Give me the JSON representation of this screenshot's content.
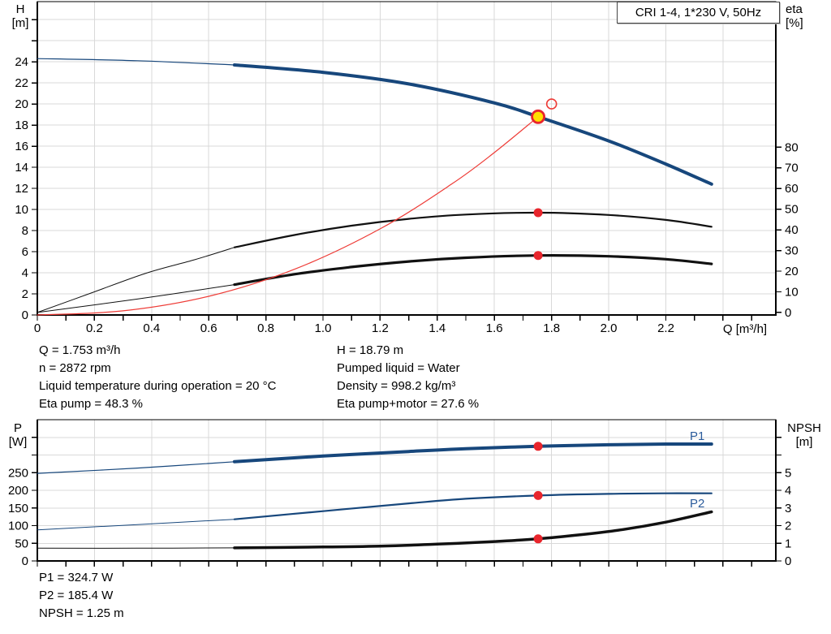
{
  "header": {
    "title": "CRI 1-4, 1*230 V, 50Hz"
  },
  "duty_text": {
    "left": [
      "Q = 1.753 m³/h",
      "n = 2872 rpm",
      "Liquid temperature during operation = 20 °C",
      "Eta pump = 48.3 %"
    ],
    "right": [
      "H = 18.79 m",
      "Pumped liquid = Water",
      "Density = 998.2 kg/m³",
      "Eta pump+motor = 27.6 %"
    ]
  },
  "result_text": [
    "P1 = 324.7 W",
    "P2 = 185.4 W",
    "NPSH = 1.25 m"
  ],
  "axis_captions": {
    "h": [
      "H",
      "[m]"
    ],
    "eta": [
      "eta",
      "[%]"
    ],
    "q": "Q [m³/h]",
    "p": [
      "P",
      "[W]"
    ],
    "npsh": [
      "NPSH",
      "[m]"
    ]
  },
  "colors": {
    "curve_blue": "#17477c",
    "label_blue": "#2a5b9b",
    "black": "#111111",
    "red": "#e8252c",
    "curve_red": "#ee3b36",
    "yellow": "#ffe000",
    "grid": "#d9d9d9",
    "axis": "#000000"
  },
  "chart_data": [
    {
      "type": "line",
      "title": "CRI 1-4, 1*230 V, 50Hz",
      "x_axis": {
        "label": "Q [m³/h]",
        "min": 0,
        "max": 2.585,
        "labeled_tick_step": 0.2,
        "labeled_tick_max": 2.2,
        "minor_tick_step": 0.1,
        "minor_tick_max": 2.5,
        "grid_step": 0.2
      },
      "y_left": {
        "label": "H [m]",
        "min": 0,
        "max": 29.7,
        "tick_step": 2,
        "tick_max": 28,
        "label_max": 24,
        "grid": true
      },
      "y_right": {
        "label": "eta [%]",
        "min": -1.2,
        "max": 150.4,
        "tick_step": 10,
        "tick_max": 80,
        "label_max": 80,
        "grid": false
      },
      "series": [
        {
          "name": "head-curve-thin",
          "axis": "left",
          "color_key": "curve_blue",
          "width": 1.2,
          "points": [
            [
              0,
              24.3
            ],
            [
              0.35,
              24.1
            ],
            [
              0.69,
              23.7
            ]
          ]
        },
        {
          "name": "head-curve",
          "axis": "left",
          "color_key": "curve_blue",
          "width": 4,
          "points": [
            [
              0.69,
              23.7
            ],
            [
              1.0,
              23.0
            ],
            [
              1.3,
              21.9
            ],
            [
              1.6,
              20.1
            ],
            [
              1.753,
              18.79
            ],
            [
              2.0,
              16.5
            ],
            [
              2.2,
              14.3
            ],
            [
              2.36,
              12.4
            ]
          ]
        },
        {
          "name": "eta-pump-curve-thin",
          "axis": "right",
          "color_key": "black",
          "width": 1,
          "points": [
            [
              0,
              0
            ],
            [
              0.18,
              9
            ],
            [
              0.38,
              19
            ],
            [
              0.55,
              25.5
            ],
            [
              0.69,
              31.5
            ]
          ]
        },
        {
          "name": "eta-pump-curve",
          "axis": "right",
          "color_key": "black",
          "width": 2.2,
          "points": [
            [
              0.69,
              31.5
            ],
            [
              0.9,
              37.5
            ],
            [
              1.1,
              42
            ],
            [
              1.3,
              45.3
            ],
            [
              1.5,
              47.4
            ],
            [
              1.753,
              48.3
            ],
            [
              2.0,
              47.2
            ],
            [
              2.2,
              44.8
            ],
            [
              2.36,
              41.5
            ]
          ]
        },
        {
          "name": "eta-pump-motor-curve-thin",
          "axis": "right",
          "color_key": "black",
          "width": 1,
          "points": [
            [
              0,
              0
            ],
            [
              0.35,
              6.5
            ],
            [
              0.69,
              13.5
            ]
          ]
        },
        {
          "name": "eta-pump-motor-curve",
          "axis": "right",
          "color_key": "black",
          "width": 3.2,
          "points": [
            [
              0.69,
              13.5
            ],
            [
              0.9,
              18.5
            ],
            [
              1.1,
              22
            ],
            [
              1.3,
              24.7
            ],
            [
              1.5,
              26.5
            ],
            [
              1.753,
              27.6
            ],
            [
              2.0,
              27.2
            ],
            [
              2.2,
              25.8
            ],
            [
              2.36,
              23.5
            ]
          ]
        },
        {
          "name": "system-curve",
          "axis": "left",
          "color_key": "curve_red",
          "width": 1.2,
          "points": [
            [
              0,
              0
            ],
            [
              0.3,
              0.39
            ],
            [
              0.6,
              1.77
            ],
            [
              0.9,
              4.33
            ],
            [
              1.2,
              8.16
            ],
            [
              1.45,
              12.4
            ],
            [
              1.6,
              15.4
            ],
            [
              1.753,
              18.79
            ]
          ]
        }
      ],
      "markers": [
        {
          "name": "duty-point",
          "axis": "left",
          "x": 1.753,
          "y": 18.79,
          "style": "duty"
        },
        {
          "name": "requested-duty-point",
          "axis": "left",
          "x": 1.8,
          "y": 20.0,
          "style": "open"
        },
        {
          "name": "eta-pump-point",
          "axis": "right",
          "x": 1.753,
          "y": 48.3,
          "style": "dot"
        },
        {
          "name": "eta-pump-motor-point",
          "axis": "right",
          "x": 1.753,
          "y": 27.6,
          "style": "dot"
        }
      ],
      "curve_labels": []
    },
    {
      "type": "line",
      "title": "Power and NPSH curves",
      "x_axis": {
        "label": "",
        "min": 0,
        "max": 2.585,
        "labeled_tick_step": 0,
        "labeled_tick_max": 0,
        "minor_tick_step": 0.1,
        "minor_tick_max": 2.5,
        "grid_step": 0.2
      },
      "y_left": {
        "label": "P [W]",
        "min": 0,
        "max": 400,
        "tick_step": 50,
        "tick_max": 350,
        "label_max": 250,
        "grid": true
      },
      "y_right": {
        "label": "NPSH [m]",
        "min": 0,
        "max": 8,
        "tick_step": 1,
        "tick_max": 7,
        "label_max": 5,
        "grid": false
      },
      "series": [
        {
          "name": "p1-curve-thin",
          "axis": "left",
          "color_key": "curve_blue",
          "width": 1.2,
          "points": [
            [
              0,
              248
            ],
            [
              0.35,
              263
            ],
            [
              0.69,
              281
            ]
          ]
        },
        {
          "name": "p1-curve",
          "axis": "left",
          "color_key": "curve_blue",
          "width": 4,
          "points": [
            [
              0.69,
              281
            ],
            [
              1.0,
              297
            ],
            [
              1.3,
              310
            ],
            [
              1.5,
              318
            ],
            [
              1.753,
              324.7
            ],
            [
              2.0,
              329
            ],
            [
              2.2,
              331
            ],
            [
              2.36,
              331
            ]
          ]
        },
        {
          "name": "p2-curve-thin",
          "axis": "left",
          "color_key": "curve_blue",
          "width": 1,
          "points": [
            [
              0,
              88
            ],
            [
              0.35,
              103
            ],
            [
              0.69,
              118
            ]
          ]
        },
        {
          "name": "p2-curve",
          "axis": "left",
          "color_key": "curve_blue",
          "width": 2.2,
          "points": [
            [
              0.69,
              118
            ],
            [
              1.0,
              141
            ],
            [
              1.3,
              163
            ],
            [
              1.5,
              176
            ],
            [
              1.753,
              185.4
            ],
            [
              2.0,
              190
            ],
            [
              2.2,
              191.5
            ],
            [
              2.36,
              191.5
            ]
          ]
        },
        {
          "name": "npsh-curve-thin",
          "axis": "right",
          "color_key": "black",
          "width": 1,
          "points": [
            [
              0,
              0.72
            ],
            [
              0.35,
              0.72
            ],
            [
              0.69,
              0.74
            ]
          ]
        },
        {
          "name": "npsh-curve",
          "axis": "right",
          "color_key": "black",
          "width": 3.5,
          "points": [
            [
              0.69,
              0.74
            ],
            [
              1.0,
              0.79
            ],
            [
              1.2,
              0.84
            ],
            [
              1.4,
              0.95
            ],
            [
              1.6,
              1.1
            ],
            [
              1.753,
              1.25
            ],
            [
              1.9,
              1.48
            ],
            [
              2.05,
              1.78
            ],
            [
              2.2,
              2.2
            ],
            [
              2.36,
              2.78
            ]
          ]
        }
      ],
      "markers": [
        {
          "name": "p1-point",
          "axis": "left",
          "x": 1.753,
          "y": 324.7,
          "style": "dot"
        },
        {
          "name": "p2-point",
          "axis": "left",
          "x": 1.753,
          "y": 185.4,
          "style": "dot"
        },
        {
          "name": "npsh-point",
          "axis": "right",
          "x": 1.753,
          "y": 1.25,
          "style": "dot"
        }
      ],
      "curve_labels": [
        {
          "text": "P1",
          "axis": "left",
          "x": 2.31,
          "y": 354
        },
        {
          "text": "P2",
          "axis": "left",
          "x": 2.31,
          "y": 163
        }
      ]
    }
  ]
}
